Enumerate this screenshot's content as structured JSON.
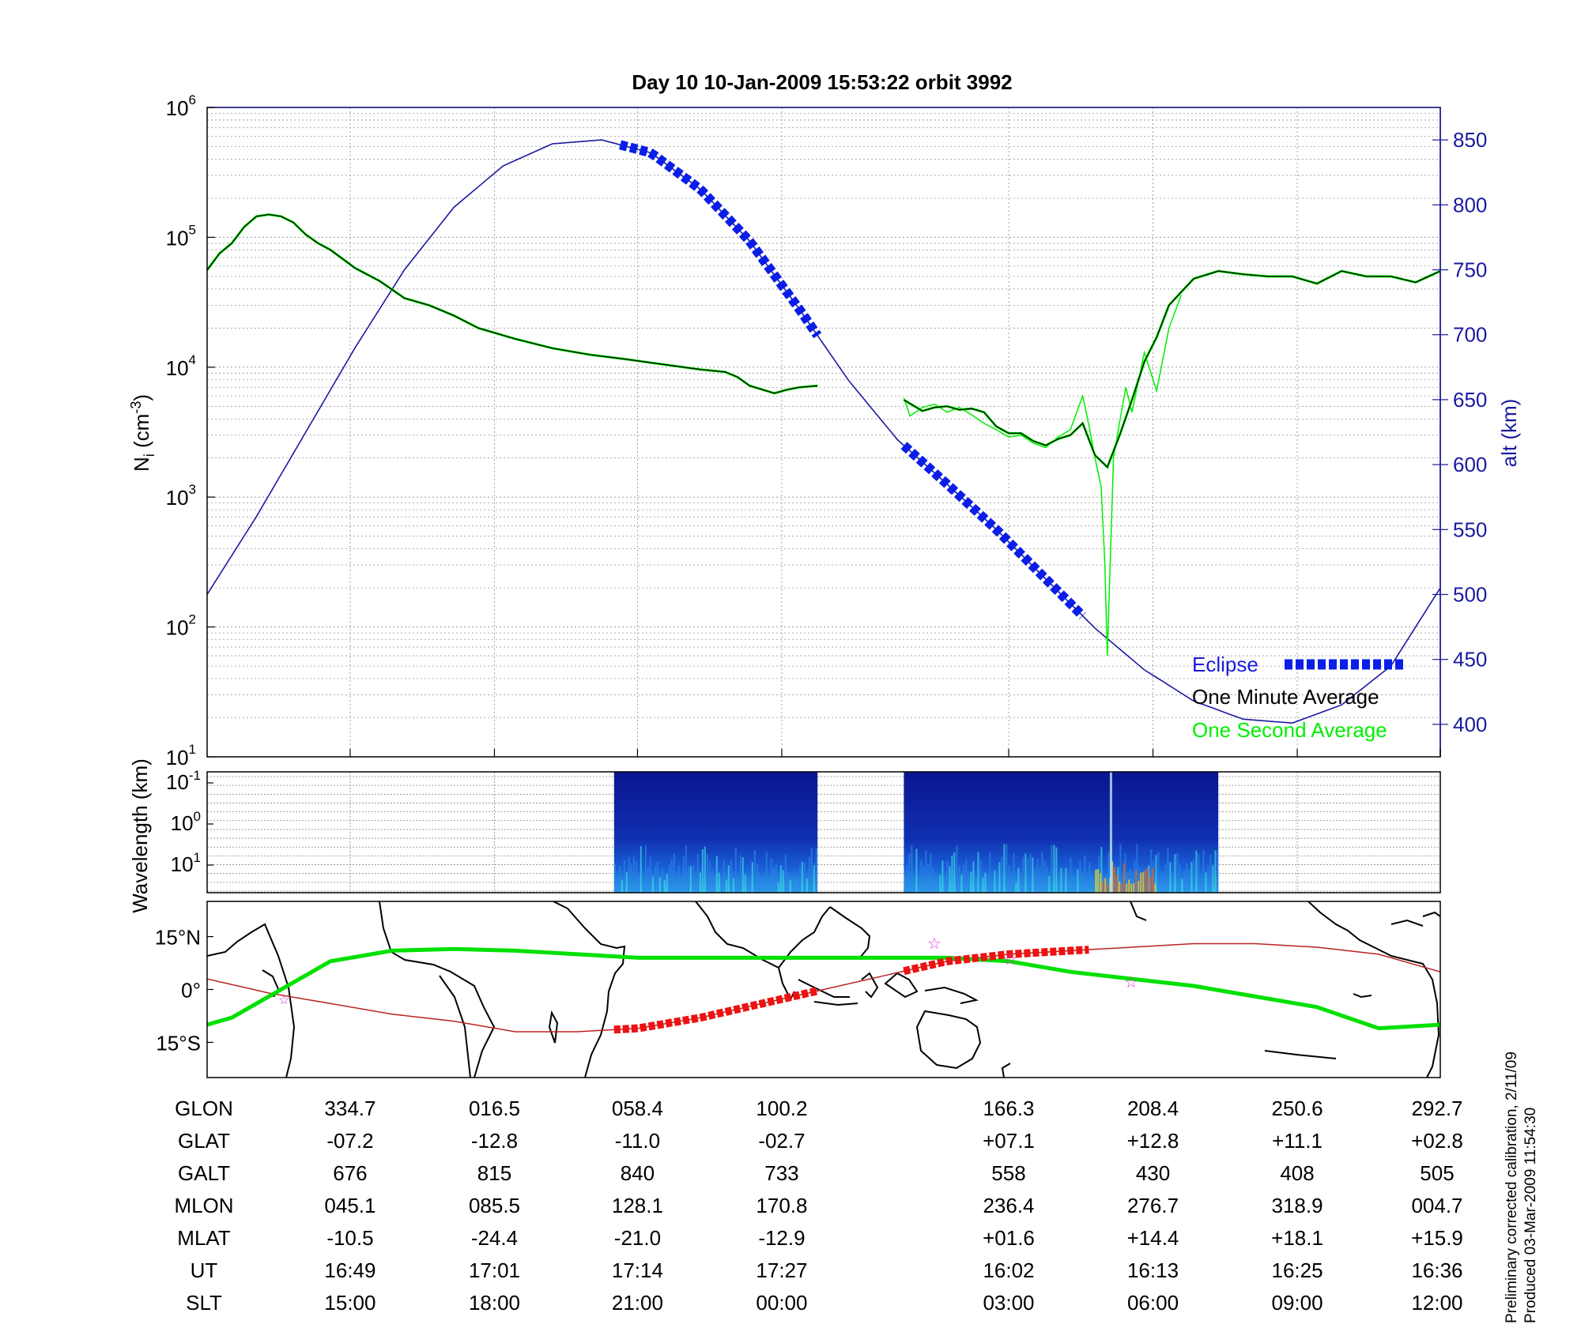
{
  "title": "Day 10  10-Jan-2009 15:53:22   orbit 3992",
  "colors": {
    "one_minute_average": "#000000",
    "one_second_average": "#00ee00",
    "altitude": "#1a1aa0",
    "eclipse": "#0a1ee8",
    "ground_track": "#00e000",
    "eclipse_track": "#ee1111",
    "magnetic_equator": "#bb2222",
    "coastline": "#000000",
    "marker": "#dd33dd"
  },
  "chart_data": [
    {
      "type": "line",
      "panel": "density",
      "ylabel_main": "N",
      "ylabel_sub": "i",
      "ylabel_unit": "(cm",
      "ylabel_exp": "-3",
      "ylabel_close": ")",
      "y2label": "alt (km)",
      "yscale": "log",
      "ylim": [
        10,
        1000000
      ],
      "yticks": [
        {
          "base": "10",
          "exp": "1",
          "v": 1
        },
        {
          "base": "10",
          "exp": "2",
          "v": 2
        },
        {
          "base": "10",
          "exp": "3",
          "v": 3
        },
        {
          "base": "10",
          "exp": "4",
          "v": 4
        },
        {
          "base": "10",
          "exp": "5",
          "v": 5
        },
        {
          "base": "10",
          "exp": "6",
          "v": 6
        }
      ],
      "y2lim": [
        375,
        875
      ],
      "y2ticks": [
        "400",
        "450",
        "500",
        "550",
        "600",
        "650",
        "700",
        "750",
        "800",
        "850"
      ],
      "xlim": [
        0,
        1
      ],
      "xticks": [
        0.116,
        0.233,
        0.349,
        0.466,
        0.65,
        0.767,
        0.884,
        1.0
      ],
      "grid": true,
      "legend_position": "bottom-right",
      "legend": [
        "Eclipse",
        "One Minute Average",
        "One Second Average"
      ],
      "series": [
        {
          "name": "One Minute Average",
          "axis": "left",
          "x": [
            0.0,
            0.01,
            0.02,
            0.03,
            0.04,
            0.05,
            0.06,
            0.07,
            0.08,
            0.09,
            0.1,
            0.12,
            0.14,
            0.16,
            0.18,
            0.2,
            0.22,
            0.25,
            0.28,
            0.31,
            0.34,
            0.37,
            0.4,
            0.42,
            0.43,
            0.44,
            0.46,
            0.47,
            0.48,
            0.495
          ],
          "y": [
            56000,
            75000,
            90000,
            120000,
            145000,
            150000,
            145000,
            130000,
            105000,
            90000,
            80000,
            58000,
            46000,
            34000,
            30000,
            25000,
            20000,
            16500,
            14000,
            12500,
            11500,
            10500,
            9600,
            9200,
            8400,
            7200,
            6300,
            6700,
            7000,
            7200
          ]
        },
        {
          "name": "One Minute Average",
          "axis": "left",
          "x": [
            0.565,
            0.58,
            0.59,
            0.6,
            0.61,
            0.62,
            0.63,
            0.64,
            0.65,
            0.66,
            0.67,
            0.68,
            0.69,
            0.7,
            0.71,
            0.72,
            0.73,
            0.74,
            0.75,
            0.76,
            0.77,
            0.78,
            0.79,
            0.8,
            0.82,
            0.84,
            0.86,
            0.88,
            0.9,
            0.92,
            0.94,
            0.96,
            0.98,
            1.0
          ],
          "y": [
            5600,
            4600,
            4900,
            5000,
            4700,
            4800,
            4500,
            3500,
            3100,
            3100,
            2700,
            2500,
            2800,
            3000,
            3700,
            2100,
            1700,
            3000,
            5600,
            11000,
            17000,
            30000,
            38000,
            48000,
            55000,
            52000,
            50000,
            50000,
            44000,
            55000,
            50000,
            50000,
            45000,
            55000
          ]
        },
        {
          "name": "One Second Average",
          "axis": "left",
          "x": [
            0.565,
            0.57,
            0.58,
            0.59,
            0.6,
            0.61,
            0.62,
            0.63,
            0.64,
            0.65,
            0.66,
            0.67,
            0.68,
            0.69,
            0.7,
            0.71,
            0.715,
            0.72,
            0.725,
            0.728,
            0.73,
            0.733,
            0.735,
            0.74,
            0.745,
            0.75,
            0.76,
            0.77,
            0.78,
            0.79
          ],
          "y": [
            5800,
            4200,
            4900,
            5200,
            4500,
            4900,
            4300,
            3700,
            3300,
            2900,
            3000,
            2600,
            2400,
            2900,
            3300,
            6000,
            3600,
            2000,
            1200,
            300,
            60,
            500,
            2000,
            3800,
            7000,
            4500,
            13000,
            6600,
            20000,
            36000
          ]
        },
        {
          "name": "Altitude",
          "axis": "right",
          "x": [
            0.0,
            0.04,
            0.08,
            0.12,
            0.16,
            0.2,
            0.24,
            0.28,
            0.32,
            0.36,
            0.4,
            0.44,
            0.48,
            0.52,
            0.56,
            0.6,
            0.64,
            0.68,
            0.72,
            0.76,
            0.8,
            0.84,
            0.88,
            0.92,
            0.96,
            1.0
          ],
          "y": [
            500,
            560,
            625,
            690,
            750,
            798,
            830,
            847,
            850,
            840,
            812,
            772,
            720,
            665,
            619,
            585,
            550,
            512,
            474,
            442,
            418,
            404,
            401,
            415,
            445,
            505
          ]
        },
        {
          "name": "Eclipse",
          "axis": "right",
          "segments": [
            [
              0.335,
              0.495
            ],
            [
              0.565,
              0.71
            ]
          ]
        }
      ]
    },
    {
      "type": "heatmap",
      "panel": "spectrogram",
      "ylabel": "Wavelength (km)",
      "yticks": [
        {
          "base": "10",
          "exp": "-1"
        },
        {
          "base": "10",
          "exp": "0"
        },
        {
          "base": "10",
          "exp": "1"
        }
      ],
      "segments": [
        [
          0.33,
          0.495
        ],
        [
          0.565,
          0.82
        ]
      ]
    },
    {
      "type": "map",
      "panel": "ground_track",
      "yticks": [
        "15°N",
        "0°",
        "15°S"
      ],
      "ylim": [
        -25,
        25
      ],
      "series": [
        {
          "name": "Orbit ground track",
          "x": [
            0.0,
            0.02,
            0.05,
            0.1,
            0.15,
            0.2,
            0.25,
            0.3,
            0.35,
            0.4,
            0.45,
            0.5,
            0.55,
            0.6,
            0.65,
            0.7,
            0.75,
            0.8,
            0.85,
            0.9,
            0.95,
            1.0
          ],
          "y": [
            -10,
            -8,
            -2,
            8,
            11,
            11.5,
            11,
            10,
            9,
            9,
            9,
            9,
            9,
            9,
            8,
            5,
            3,
            1,
            -2,
            -5,
            -11,
            -10
          ]
        },
        {
          "name": "Magnetic equator",
          "x": [
            0.0,
            0.05,
            0.1,
            0.15,
            0.2,
            0.25,
            0.3,
            0.35,
            0.4,
            0.45,
            0.5,
            0.55,
            0.6,
            0.65,
            0.7,
            0.75,
            0.8,
            0.85,
            0.9,
            0.95,
            1.0
          ],
          "y": [
            3,
            -1,
            -4,
            -7,
            -9,
            -12,
            -12,
            -11,
            -8,
            -4,
            0,
            4,
            8,
            10,
            11,
            12,
            13,
            13,
            12,
            10,
            5
          ]
        },
        {
          "name": "Eclipse track",
          "segments": [
            [
              0.33,
              0.495
            ],
            [
              0.565,
              0.715
            ]
          ]
        }
      ]
    },
    {
      "type": "table",
      "panel": "orbit_parameters",
      "columns_x": [
        0.116,
        0.233,
        0.349,
        0.466,
        0.65,
        0.767,
        0.884,
        1.0
      ],
      "rows": [
        {
          "label": "GLON",
          "values": [
            "334.7",
            "016.5",
            "058.4",
            "100.2",
            "166.3",
            "208.4",
            "250.6",
            "292.7"
          ]
        },
        {
          "label": "GLAT",
          "values": [
            "-07.2",
            "-12.8",
            "-11.0",
            "-02.7",
            "+07.1",
            "+12.8",
            "+11.1",
            "+02.8"
          ]
        },
        {
          "label": "GALT",
          "values": [
            "676",
            "815",
            "840",
            "733",
            "558",
            "430",
            "408",
            "505"
          ]
        },
        {
          "label": "MLON",
          "values": [
            "045.1",
            "085.5",
            "128.1",
            "170.8",
            "236.4",
            "276.7",
            "318.9",
            "004.7"
          ]
        },
        {
          "label": "MLAT",
          "values": [
            "-10.5",
            "-24.4",
            "-21.0",
            "-12.9",
            "+01.6",
            "+14.4",
            "+18.1",
            "+15.9"
          ]
        },
        {
          "label": "UT",
          "values": [
            "16:49",
            "17:01",
            "17:14",
            "17:27",
            "16:02",
            "16:13",
            "16:25",
            "16:36"
          ]
        },
        {
          "label": "SLT",
          "values": [
            "15:00",
            "18:00",
            "21:00",
            "00:00",
            "03:00",
            "06:00",
            "09:00",
            "12:00"
          ]
        }
      ]
    }
  ],
  "footer": {
    "line1": "Preliminary corrected calibration, 2/11/09",
    "line2": "Produced 03-Mar-2009 11:54:30"
  }
}
